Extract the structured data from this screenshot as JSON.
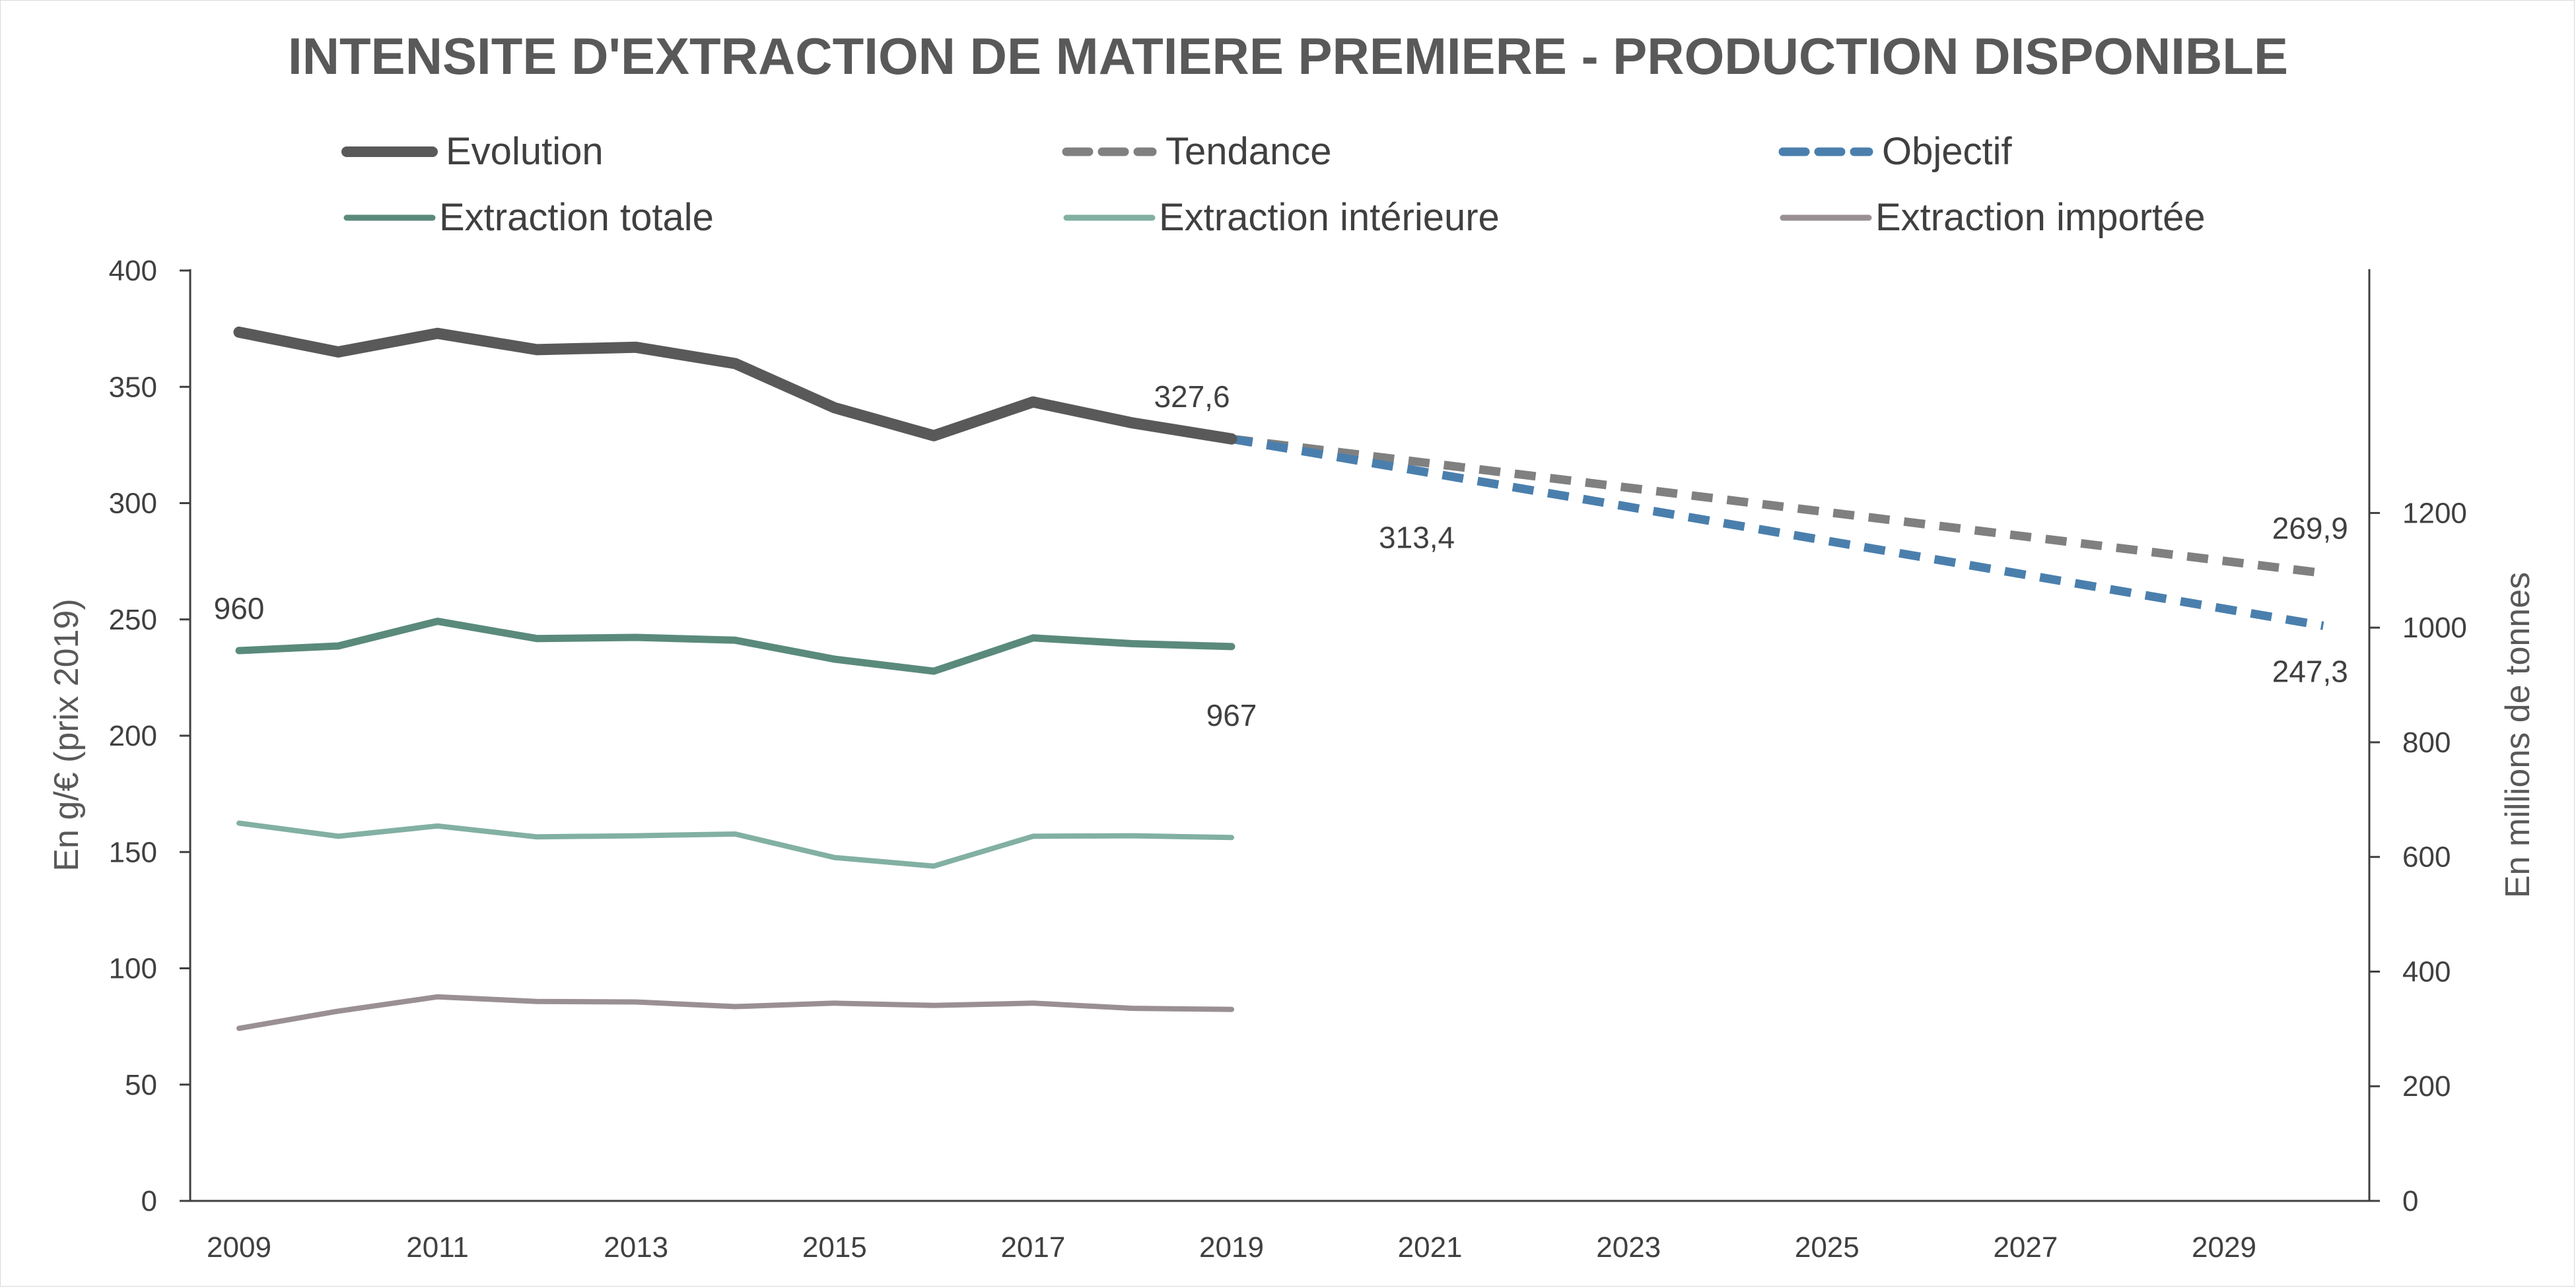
{
  "chart_data": {
    "type": "line",
    "title": "INTENSITE D'EXTRACTION DE MATIERE PREMIERE - PRODUCTION DISPONIBLE",
    "ylabel_left": "En g/€ (prix 2019)",
    "ylabel_right": "En millions de tonnes",
    "xlim": [
      2009,
      2030.5
    ],
    "ylim_left": [
      0,
      400
    ],
    "ylim_right": [
      0,
      1300
    ],
    "left_ticks": [
      0,
      50,
      100,
      150,
      200,
      250,
      300,
      350,
      400
    ],
    "right_ticks": [
      0,
      200,
      400,
      600,
      800,
      1000,
      1200
    ],
    "x_ticks": [
      2009,
      2011,
      2013,
      2015,
      2017,
      2019,
      2021,
      2023,
      2025,
      2027,
      2029
    ],
    "legend_placement": "top",
    "grid": false,
    "series": [
      {
        "name": "Evolution",
        "axis": "left",
        "style": "solid",
        "color": "#595959",
        "x": [
          2009,
          2010,
          2011,
          2012,
          2013,
          2014,
          2015,
          2016,
          2017,
          2018,
          2019
        ],
        "values": [
          373.5,
          365,
          373,
          366,
          367,
          360,
          341,
          329,
          343.5,
          334.5,
          327.6
        ]
      },
      {
        "name": "Tendance",
        "axis": "left",
        "style": "dashed",
        "color": "#808080",
        "x": [
          2019,
          2030
        ],
        "values": [
          327.6,
          269.9
        ]
      },
      {
        "name": "Objectif",
        "axis": "left",
        "style": "dashed",
        "color": "#4a7fad",
        "x": [
          2019,
          2030
        ],
        "values": [
          327.6,
          247.3
        ]
      },
      {
        "name": "Extraction totale",
        "axis": "right",
        "style": "solid",
        "color": "#5a8a7b",
        "x": [
          2009,
          2010,
          2011,
          2012,
          2013,
          2014,
          2015,
          2016,
          2017,
          2018,
          2019
        ],
        "values": [
          960,
          968,
          1011,
          981,
          983,
          978,
          945,
          924,
          982,
          972,
          967
        ]
      },
      {
        "name": "Extraction intérieure",
        "axis": "right",
        "style": "solid",
        "color": "#82b0a3",
        "x": [
          2009,
          2010,
          2011,
          2012,
          2013,
          2014,
          2015,
          2016,
          2017,
          2018,
          2019
        ],
        "values": [
          659,
          636,
          654,
          635,
          637,
          640,
          599,
          584,
          636,
          637,
          634
        ]
      },
      {
        "name": "Extraction importée",
        "axis": "right",
        "style": "solid",
        "color": "#9a9094",
        "x": [
          2009,
          2010,
          2011,
          2012,
          2013,
          2014,
          2015,
          2016,
          2017,
          2018,
          2019
        ],
        "values": [
          301,
          331,
          356,
          348,
          347,
          339,
          345,
          341,
          345,
          336,
          334
        ]
      }
    ],
    "data_labels": [
      {
        "text": "327,6",
        "x": 2019,
        "value": 327.6,
        "axis": "left",
        "pos": "above-left"
      },
      {
        "text": "313,4",
        "x": 2021,
        "value": 313.4,
        "axis": "left",
        "pos": "below"
      },
      {
        "text": "269,9",
        "x": 2030,
        "value": 269.9,
        "axis": "left",
        "pos": "above"
      },
      {
        "text": "247,3",
        "x": 2030,
        "value": 247.3,
        "axis": "left",
        "pos": "below"
      },
      {
        "text": "960",
        "x": 2009,
        "value": 960,
        "axis": "right",
        "pos": "above"
      },
      {
        "text": "967",
        "x": 2019,
        "value": 967,
        "axis": "right",
        "pos": "below-left"
      }
    ]
  }
}
